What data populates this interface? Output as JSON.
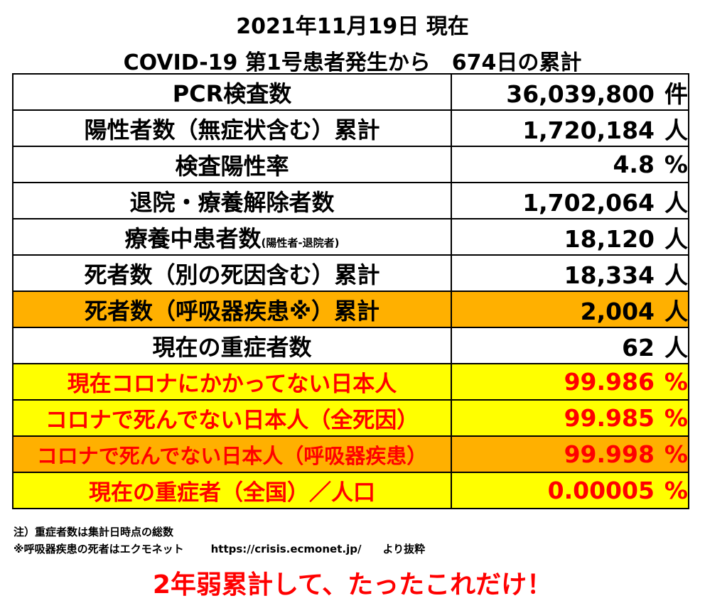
{
  "header": {
    "line1": "2021年11月19日 現在",
    "line2": "COVID-19 第1号患者発生から　674日の累計"
  },
  "rows": [
    {
      "label": "PCR検査数",
      "sub": "",
      "value": "36,039,800",
      "unit": "件",
      "style": "normal"
    },
    {
      "label": "陽性者数（無症状含む）累計",
      "sub": "",
      "value": "1,720,184",
      "unit": "人",
      "style": "normal"
    },
    {
      "label": "検査陽性率",
      "sub": "",
      "value": "4.8",
      "unit": "%",
      "style": "normal"
    },
    {
      "label": "退院・療養解除者数",
      "sub": "",
      "value": "1,702,064",
      "unit": "人",
      "style": "normal"
    },
    {
      "label": "療養中患者数",
      "sub": "(陽性者-退院者)",
      "value": "18,120",
      "unit": "人",
      "style": "normal"
    },
    {
      "label": "死者数（別の死因含む）累計",
      "sub": "",
      "value": "18,334",
      "unit": "人",
      "style": "normal"
    },
    {
      "label": "死者数（呼吸器疾患※）累計",
      "sub": "",
      "value": "2,004",
      "unit": "人",
      "style": "orange"
    },
    {
      "label": "現在の重症者数",
      "sub": "",
      "value": "62",
      "unit": "人",
      "style": "normal"
    },
    {
      "label": "現在コロナにかかってない日本人",
      "sub": "",
      "value": "99.986",
      "unit": "%",
      "style": "yellow-red"
    },
    {
      "label": "コロナで死んでない日本人（全死因）",
      "sub": "",
      "value": "99.985",
      "unit": "%",
      "style": "yellow-red"
    },
    {
      "label": "コロナで死んでない日本人（呼吸器疾患）",
      "sub": "",
      "value": "99.998",
      "unit": "%",
      "style": "orange-red"
    },
    {
      "label": "現在の重症者（全国）／人口",
      "sub": "",
      "value": "0.00005",
      "unit": "%",
      "style": "yellow-red"
    }
  ],
  "notes": {
    "note1": "注）重症者数は集計日時点の総数",
    "note2_prefix": "※呼吸器疾患の死者はエクモネット",
    "note2_url": "https://crisis.ecmonet.jp/",
    "note2_suffix": "より抜粋"
  },
  "footer": "2年弱累計して、たったこれだけ！",
  "colors": {
    "orange": "#ffb000",
    "yellow": "#ffff00",
    "red": "#ff0000"
  }
}
